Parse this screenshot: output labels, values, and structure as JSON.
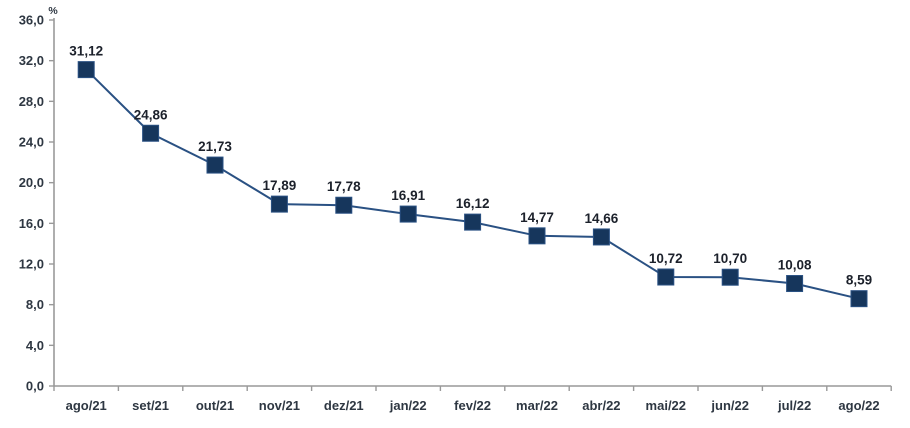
{
  "chart_data": {
    "type": "line",
    "title": "",
    "xlabel": "",
    "ylabel": "%",
    "categories": [
      "ago/21",
      "set/21",
      "out/21",
      "nov/21",
      "dez/21",
      "jan/22",
      "fev/22",
      "mar/22",
      "abr/22",
      "mai/22",
      "jun/22",
      "jul/22",
      "ago/22"
    ],
    "values": [
      31.12,
      24.86,
      21.73,
      17.89,
      17.78,
      16.91,
      16.12,
      14.77,
      14.66,
      10.72,
      10.7,
      10.08,
      8.59
    ],
    "value_labels": [
      "31,12",
      "24,86",
      "21,73",
      "17,89",
      "17,78",
      "16,91",
      "16,12",
      "14,77",
      "14,66",
      "10,72",
      "10,70",
      "10,08",
      "8,59"
    ],
    "ylim": [
      0,
      36
    ],
    "ytick_values": [
      0,
      4,
      8,
      12,
      16,
      20,
      24,
      28,
      32,
      36
    ],
    "ytick_labels": [
      "0,0",
      "4,0",
      "8,0",
      "12,0",
      "16,0",
      "20,0",
      "24,0",
      "28,0",
      "32,0",
      "36,0"
    ],
    "grid": false,
    "legend_position": "none",
    "marker_shape": "square",
    "colors": {
      "marker": "#16365C",
      "line": "#2A5183",
      "data_label": "#1C212B",
      "axis_text": "#2E3742",
      "axis_line": "#999999"
    }
  }
}
